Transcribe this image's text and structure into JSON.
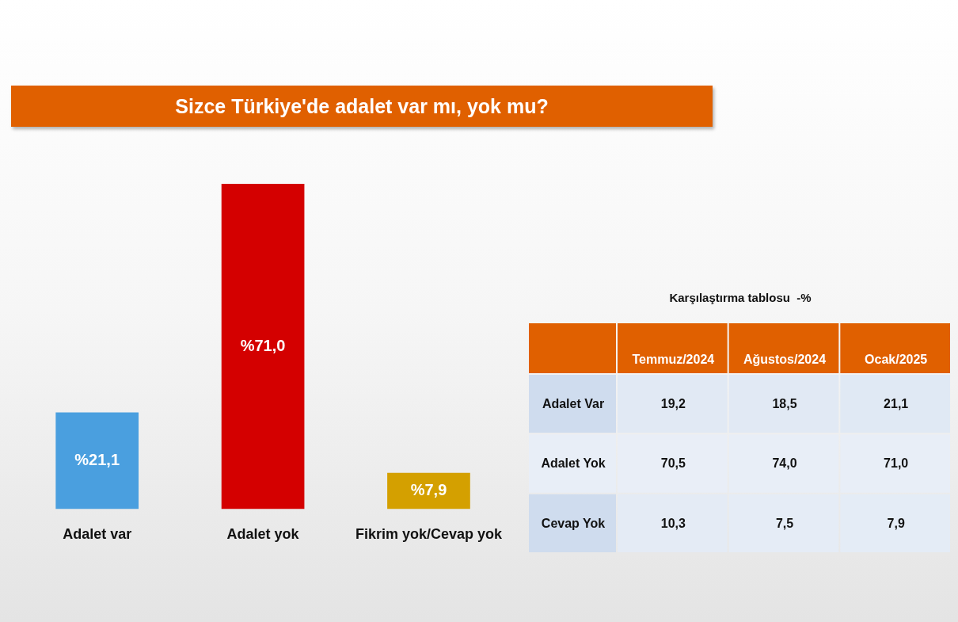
{
  "chart_data": [
    {
      "type": "bar",
      "title": "Sizce Türkiye'de adalet var mı, yok mu?",
      "categories": [
        "Adalet var",
        "Adalet yok",
        "Fikrim yok/Cevap yok"
      ],
      "values": [
        21.1,
        71.0,
        7.9
      ],
      "colors": [
        "#4a9fdf",
        "#d40000",
        "#d4a000"
      ],
      "value_labels": [
        "%21,1",
        "%71,0",
        "%7,9"
      ]
    },
    {
      "type": "heatmap",
      "title": "Karşılaştırma tablosu  -%",
      "categories": [
        "Temmuz/2024",
        "Ağustos/2024",
        "Ocak/2025"
      ],
      "y_categories": [
        "Adalet Var",
        "Adalet Yok",
        "Cevap Yok"
      ],
      "cells": [
        [
          19.2,
          18.5,
          21.1
        ],
        [
          70.5,
          74.0,
          71.0
        ],
        [
          10.3,
          7.5,
          7.9
        ]
      ],
      "cell_labels": [
        [
          "19,2",
          "18,5",
          "21,1"
        ],
        [
          "70,5",
          "74,0",
          "71,0"
        ],
        [
          "10,3",
          "7,5",
          "7,9"
        ]
      ]
    }
  ]
}
